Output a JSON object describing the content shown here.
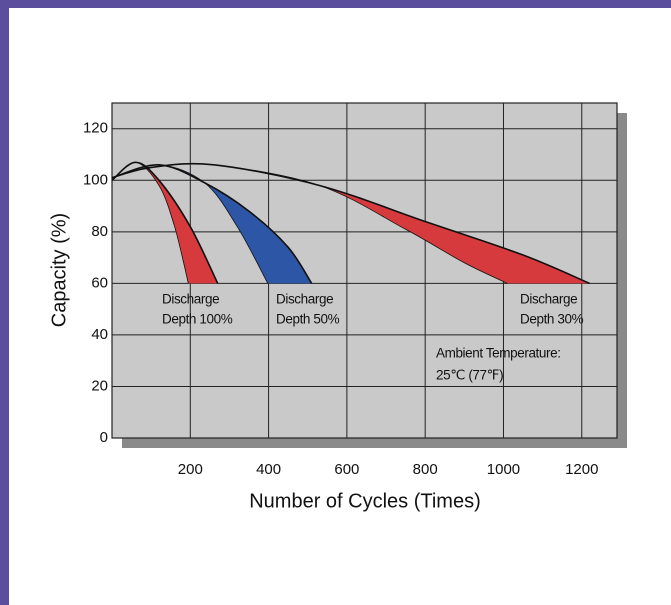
{
  "chart_data": {
    "type": "band",
    "xlabel": "Number of Cycles (Times)",
    "ylabel": "Capacity (%)",
    "xlim": [
      0,
      1290
    ],
    "ylim": [
      0,
      130
    ],
    "xticks": [
      200,
      400,
      600,
      800,
      1000,
      1200
    ],
    "yticks": [
      0,
      20,
      40,
      60,
      80,
      100,
      120
    ],
    "grid": true,
    "series": [
      {
        "color": "#d63a3c",
        "outer": {
          "x": [
            0,
            60,
            120,
            200,
            270
          ],
          "values": [
            100,
            107,
            100,
            82,
            60
          ]
        },
        "inner": {
          "x": [
            0,
            60,
            120,
            160,
            195
          ],
          "values": [
            100,
            107,
            98,
            82,
            60
          ]
        }
      },
      {
        "color": "#2e56a6",
        "outer": {
          "x": [
            0,
            120,
            237,
            350,
            450,
            510
          ],
          "values": [
            101,
            106,
            99,
            88,
            74,
            60
          ]
        },
        "inner": {
          "x": [
            0,
            120,
            237,
            320,
            398
          ],
          "values": [
            101,
            106,
            99,
            82,
            60
          ]
        }
      },
      {
        "color": "#d63a3c",
        "outer": {
          "x": [
            0,
            100,
            260,
            530,
            800,
            1050,
            1220
          ],
          "values": [
            101,
            105,
            106,
            98,
            84,
            71,
            60
          ]
        },
        "inner": {
          "x": [
            0,
            100,
            260,
            530,
            750,
            900,
            1010
          ],
          "values": [
            101,
            105,
            106,
            98,
            81,
            68,
            60
          ]
        }
      }
    ],
    "annotations": [
      "Discharge",
      "Depth 100%",
      "Discharge",
      "Depth 50%",
      "Discharge",
      "Depth 30%",
      "Ambient Temperature:",
      "25℃  (77℉)"
    ]
  }
}
